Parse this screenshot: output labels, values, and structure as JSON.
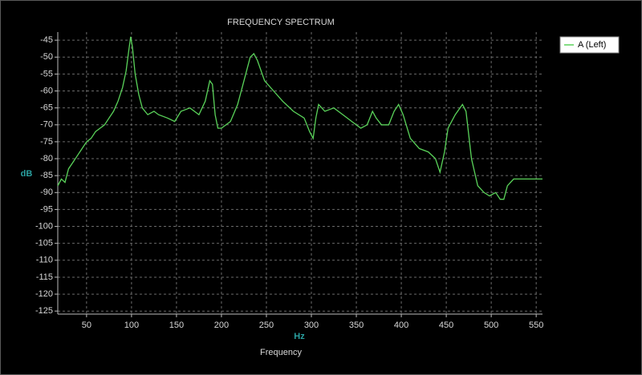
{
  "chart_data": {
    "type": "line",
    "title": "FREQUENCY SPECTRUM",
    "x_label": "Hz",
    "y_label": "dB",
    "footer_label": "Frequency",
    "x": [
      18,
      22,
      26,
      30,
      35,
      40,
      45,
      50,
      55,
      60,
      65,
      70,
      75,
      80,
      85,
      90,
      94,
      97,
      99,
      101,
      104,
      108,
      112,
      118,
      125,
      130,
      140,
      148,
      155,
      165,
      175,
      182,
      187,
      190,
      193,
      196,
      200,
      210,
      218,
      225,
      232,
      236,
      240,
      248,
      258,
      268,
      280,
      292,
      298,
      302,
      305,
      308,
      315,
      325,
      335,
      345,
      355,
      362,
      368,
      372,
      378,
      386,
      392,
      397,
      402,
      410,
      420,
      430,
      438,
      443,
      448,
      452,
      460,
      468,
      472,
      478,
      485,
      492,
      498,
      505,
      510,
      514,
      518,
      525,
      540,
      557
    ],
    "series": [
      {
        "name": "A (Left)",
        "color": "#5ad35a",
        "values": [
          -88,
          -86,
          -87,
          -83,
          -81,
          -79,
          -77,
          -75,
          -74,
          -72,
          -71,
          -70,
          -68,
          -66,
          -63,
          -59,
          -54,
          -48,
          -44,
          -47,
          -55,
          -61,
          -65,
          -67,
          -66,
          -67,
          -68,
          -69,
          -66,
          -65,
          -67,
          -63,
          -57,
          -58,
          -67,
          -71,
          -71,
          -69,
          -64,
          -57,
          -50,
          -49,
          -51,
          -57,
          -60,
          -63,
          -66,
          -68,
          -72,
          -74,
          -68,
          -64,
          -66,
          -65,
          -67,
          -69,
          -71,
          -70,
          -66,
          -68,
          -70,
          -70,
          -66,
          -64,
          -67,
          -74,
          -77,
          -78,
          -80,
          -84,
          -78,
          -71,
          -67,
          -64,
          -66,
          -80,
          -88,
          -90,
          -91,
          -90,
          -92,
          -92,
          -88,
          -86,
          -86,
          -86
        ]
      }
    ],
    "xlim": [
      18,
      557
    ],
    "ylim": [
      -42.6,
      -125.9
    ],
    "xticks": [
      50,
      100,
      150,
      200,
      250,
      300,
      350,
      400,
      450,
      500,
      550
    ],
    "yticks": [
      -45,
      -50,
      -55,
      -60,
      -65,
      -70,
      -75,
      -80,
      -85,
      -90,
      -95,
      -100,
      -105,
      -110,
      -115,
      -120,
      -125
    ],
    "grid": true,
    "legend": "top-right"
  }
}
